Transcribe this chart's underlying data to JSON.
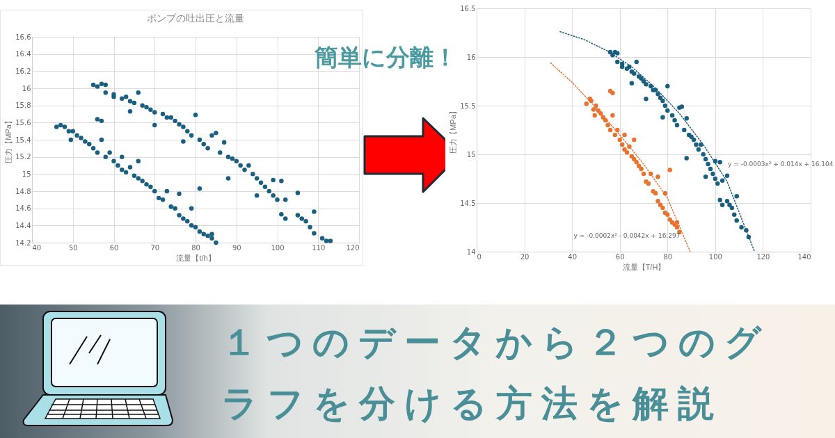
{
  "chart_data": [
    {
      "type": "scatter",
      "title": "ポンプの吐出圧と流量",
      "xlabel": "流量【t/h】",
      "ylabel": "圧力【MPa】",
      "xlim": [
        40,
        120
      ],
      "xticks": [
        40,
        50,
        60,
        70,
        80,
        90,
        100,
        110,
        120
      ],
      "ylim": [
        14.2,
        16.6
      ],
      "yticks": [
        14.2,
        14.4,
        14.6,
        14.8,
        15,
        15.2,
        15.4,
        15.6,
        15.8,
        16,
        16.2,
        16.4,
        16.6
      ],
      "grid": true,
      "marker": "circle",
      "series": [
        {
          "color": "#1a5e80",
          "x": [
            55,
            56,
            57,
            58,
            58,
            60,
            60,
            62,
            63,
            64,
            65,
            66,
            64,
            67,
            68,
            69,
            70,
            70,
            72,
            73,
            74,
            75,
            76,
            77,
            78,
            79,
            80,
            77,
            81,
            82,
            83,
            84,
            85,
            86,
            87,
            88,
            89,
            90,
            91,
            88,
            92,
            93,
            94,
            95,
            95,
            96,
            97,
            98,
            99,
            99,
            100,
            101,
            102,
            101,
            102,
            105,
            105,
            106,
            107,
            108,
            109,
            109,
            111,
            112,
            113,
            46,
            47,
            48,
            49,
            49.5,
            50,
            51,
            52,
            53,
            54,
            55,
            56,
            57,
            56,
            57,
            58,
            59,
            60,
            61,
            62,
            62,
            63,
            64,
            65,
            66,
            66,
            67,
            68,
            69,
            70,
            71,
            72,
            73,
            74,
            75,
            76,
            76,
            77,
            78,
            79,
            79,
            80,
            81,
            81,
            82,
            83,
            84,
            84,
            85
          ],
          "values": [
            16.04,
            16.02,
            16.05,
            16.04,
            15.95,
            15.93,
            15.9,
            15.88,
            15.9,
            15.85,
            15.83,
            15.95,
            15.73,
            15.8,
            15.78,
            15.75,
            15.72,
            15.57,
            15.7,
            15.66,
            15.66,
            15.62,
            15.58,
            15.55,
            15.5,
            15.45,
            15.69,
            15.38,
            15.4,
            15.35,
            15.3,
            15.45,
            15.48,
            15.25,
            15.37,
            15.2,
            15.18,
            15.15,
            15.1,
            14.95,
            15.05,
            15.1,
            15,
            14.95,
            14.75,
            14.9,
            14.85,
            14.8,
            14.93,
            14.75,
            14.7,
            14.92,
            14.7,
            14.53,
            14.48,
            14.78,
            14.52,
            14.48,
            14.45,
            14.38,
            14.56,
            14.31,
            14.25,
            14.22,
            14.22,
            15.55,
            15.57,
            15.55,
            15.5,
            15.4,
            15.5,
            15.45,
            15.42,
            15.38,
            15.35,
            15.3,
            15.64,
            15.62,
            15.25,
            15.4,
            15.2,
            15.25,
            15.15,
            15.1,
            15.2,
            15.05,
            15.02,
            15.08,
            14.98,
            15.15,
            14.95,
            14.92,
            14.88,
            14.85,
            14.8,
            14.72,
            14.7,
            14.8,
            14.62,
            14.6,
            14.77,
            14.52,
            14.48,
            14.45,
            14.6,
            14.4,
            14.38,
            14.83,
            14.33,
            14.3,
            14.28,
            14.3,
            14.25,
            14.2
          ]
        }
      ]
    },
    {
      "type": "scatter",
      "xlabel": "流量【T/H】",
      "ylabel": "圧力【MPa】",
      "xlim": [
        0,
        140
      ],
      "xticks": [
        0,
        20,
        40,
        60,
        80,
        100,
        120,
        140
      ],
      "ylim": [
        14,
        16.5
      ],
      "yticks": [
        14,
        14.5,
        15,
        15.5,
        16,
        16.5
      ],
      "grid": true,
      "series": [
        {
          "color": "#1a5e80",
          "marker": "circle",
          "x": [
            56,
            57,
            58,
            59,
            59,
            61,
            61,
            63,
            64,
            65,
            66,
            67,
            65,
            68,
            69,
            70,
            71,
            71,
            73,
            74,
            75,
            76,
            77,
            78,
            79,
            80,
            80,
            78,
            82,
            83,
            84,
            85,
            86,
            87,
            88,
            89,
            90,
            91,
            92,
            88,
            93,
            94,
            95,
            96,
            96,
            97,
            98,
            99,
            100,
            100,
            101,
            102,
            103,
            102,
            103,
            105,
            105,
            106,
            107,
            108,
            109,
            109,
            111,
            113,
            114
          ],
          "values": [
            16.05,
            16.02,
            16.05,
            16.04,
            15.95,
            15.93,
            15.9,
            15.88,
            15.9,
            15.85,
            15.83,
            15.95,
            15.73,
            15.8,
            15.78,
            15.75,
            15.72,
            15.57,
            15.7,
            15.66,
            15.66,
            15.62,
            15.58,
            15.55,
            15.5,
            15.45,
            15.7,
            15.38,
            15.4,
            15.35,
            15.3,
            15.48,
            15.49,
            15.25,
            15.37,
            15.2,
            15.18,
            15.15,
            15.1,
            14.96,
            15.05,
            15.1,
            15,
            14.95,
            14.77,
            14.9,
            14.85,
            14.8,
            14.93,
            14.75,
            14.7,
            14.92,
            14.73,
            14.53,
            14.48,
            14.78,
            14.52,
            14.48,
            14.45,
            14.38,
            14.57,
            14.32,
            14.25,
            14.22,
            14.15
          ]
        },
        {
          "color": "#e87330",
          "marker": "circle",
          "x": [
            46,
            47.5,
            48,
            49,
            49.5,
            50,
            51,
            52,
            53,
            54,
            55,
            56,
            57,
            56,
            57,
            58,
            59,
            60,
            61,
            62,
            62,
            63,
            64,
            65,
            66,
            66,
            67,
            68,
            69,
            70,
            71,
            72,
            73,
            74,
            75,
            76,
            76,
            77,
            78,
            79,
            79,
            80,
            81,
            81,
            82,
            83,
            84,
            84,
            85
          ],
          "values": [
            15.52,
            15.57,
            15.55,
            15.46,
            15.4,
            15.5,
            15.45,
            15.42,
            15.38,
            15.35,
            15.3,
            15.65,
            15.63,
            15.25,
            15.4,
            15.2,
            15.25,
            15.15,
            15.1,
            15.2,
            15.05,
            15.02,
            15.08,
            14.98,
            15.15,
            14.95,
            14.92,
            14.88,
            14.85,
            14.8,
            14.72,
            14.7,
            14.8,
            14.62,
            14.6,
            14.77,
            14.52,
            14.48,
            14.45,
            14.6,
            14.4,
            14.38,
            14.84,
            14.33,
            14.3,
            14.28,
            14.3,
            14.25,
            14.2
          ]
        },
        {
          "type": "line",
          "color": "#1a5e80",
          "line_style": "dotted",
          "x": [
            35,
            45,
            55,
            65,
            75,
            85,
            95,
            105,
            116.5
          ],
          "values": [
            16.26,
            16.18,
            16.06,
            15.9,
            15.68,
            15.42,
            15.1,
            14.72,
            14
          ]
        },
        {
          "type": "line",
          "color": "#e87330",
          "line_style": "dotted",
          "x": [
            31,
            40,
            50,
            60,
            70,
            80,
            89.5
          ],
          "values": [
            15.94,
            15.74,
            15.48,
            15.2,
            14.9,
            14.55,
            14
          ]
        }
      ],
      "annotations": [
        "y = -0.0003x² + 0.014x + 16.104",
        "y = -0.0002x² - 0.0042x + 16.297"
      ]
    },
    {
      "type": "other",
      "title": "１つのデータから２つのグラフを分ける方法を解説",
      "subtitle": "簡単に分離！"
    }
  ]
}
